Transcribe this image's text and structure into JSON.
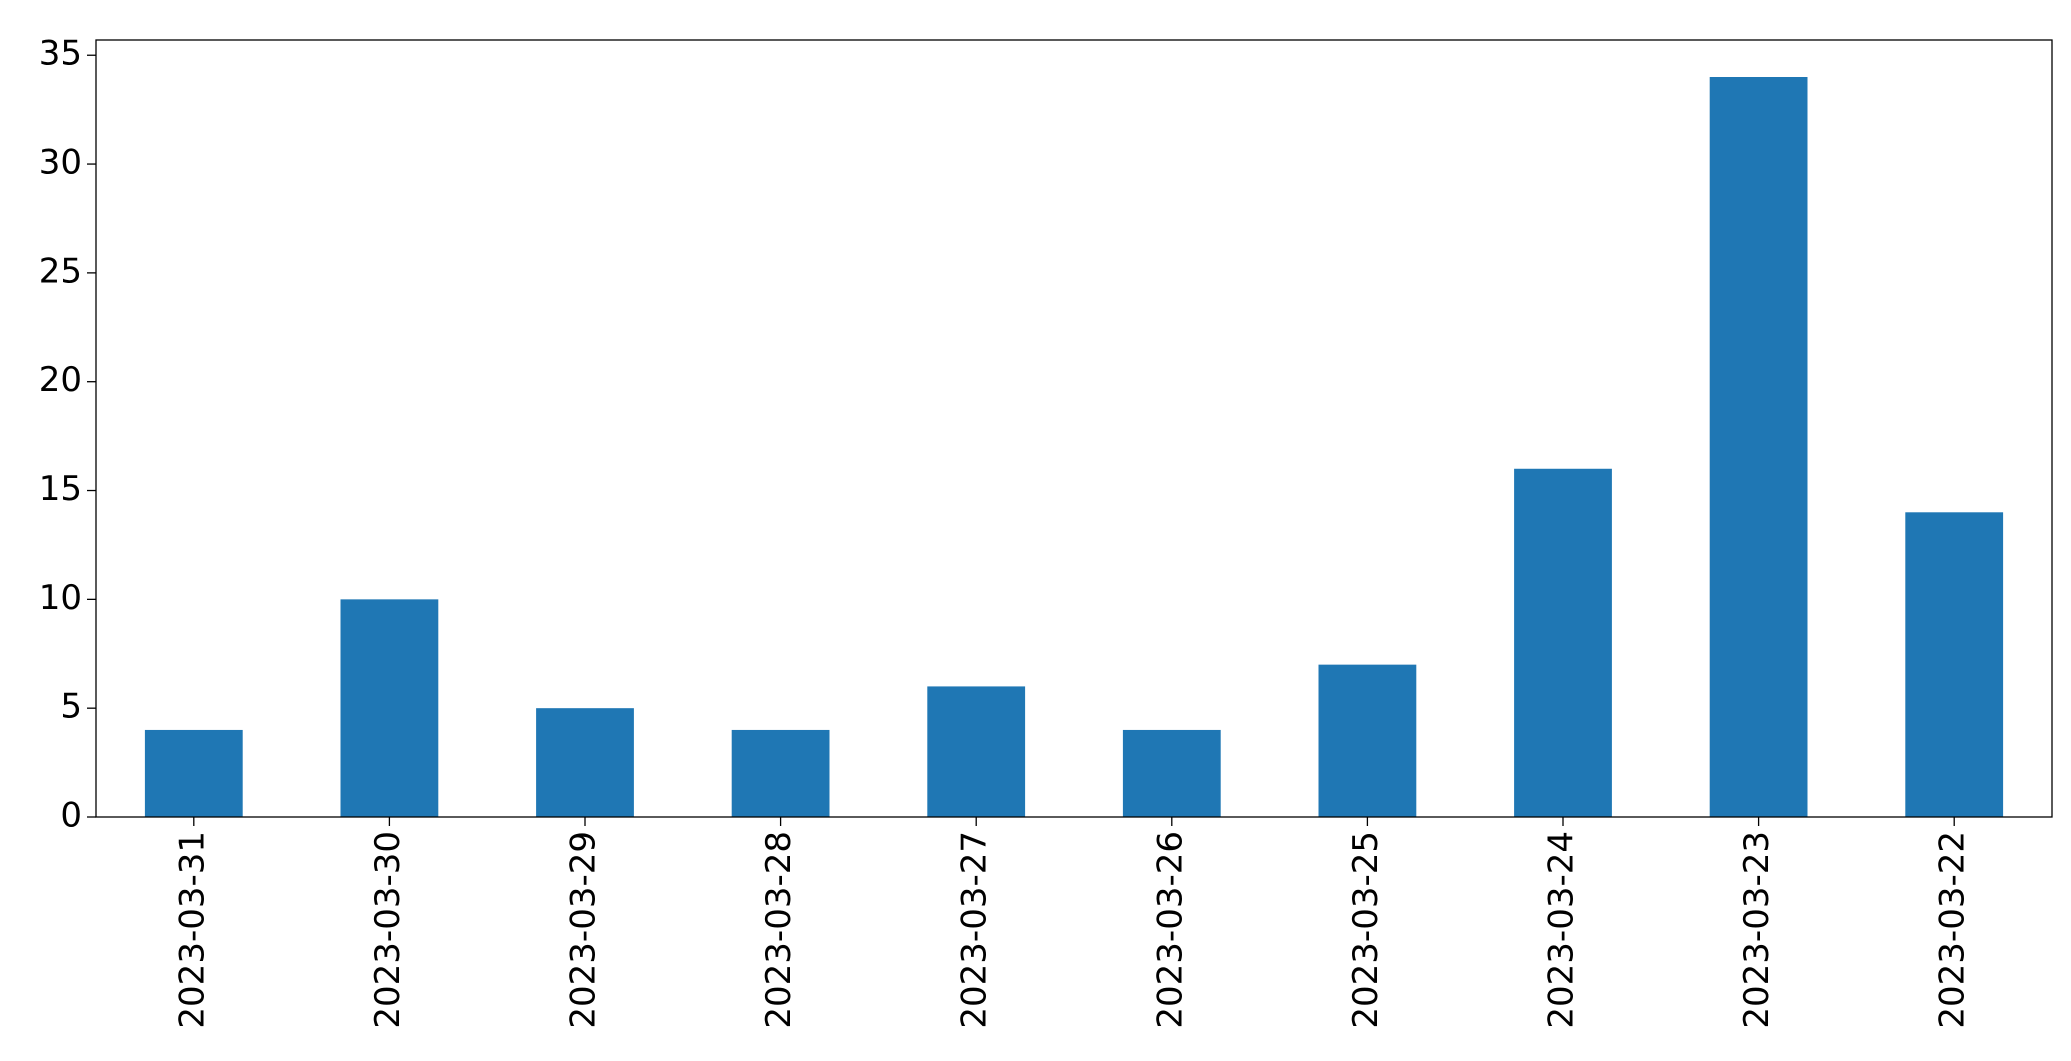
{
  "chart_data": {
    "type": "bar",
    "categories": [
      "2023-03-31",
      "2023-03-30",
      "2023-03-29",
      "2023-03-28",
      "2023-03-27",
      "2023-03-26",
      "2023-03-25",
      "2023-03-24",
      "2023-03-23",
      "2023-03-22"
    ],
    "values": [
      4,
      10,
      5,
      4,
      6,
      4,
      7,
      16,
      34,
      14
    ],
    "color": "#1f77b4",
    "ylim": [
      0,
      35.7
    ],
    "yticks": [
      0,
      5,
      10,
      15,
      20,
      25,
      30,
      35
    ],
    "grid": false
  }
}
